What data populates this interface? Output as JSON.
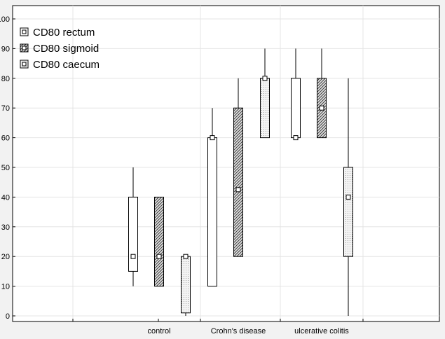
{
  "chart_data": {
    "type": "boxplot",
    "categories": [
      "control",
      "Crohn's disease",
      "ulcerative colitis"
    ],
    "ylim": [
      0,
      100
    ],
    "yticks": [
      0,
      10,
      20,
      30,
      40,
      50,
      60,
      70,
      80,
      90,
      100
    ],
    "grid": true,
    "legend_position": "top-left",
    "series": [
      {
        "name": "CD80 rectum",
        "pattern": "plain",
        "boxes": [
          {
            "min": 10,
            "q1": 15,
            "median": 20,
            "q3": 40,
            "max": 50
          },
          {
            "min": 10,
            "q1": 10,
            "median": 60,
            "q3": 60,
            "max": 70
          },
          {
            "min": 60,
            "q1": 60,
            "median": 60,
            "q3": 80,
            "max": 90
          }
        ]
      },
      {
        "name": "CD80 sigmoid",
        "pattern": "hatch",
        "boxes": [
          {
            "min": 10,
            "q1": 10,
            "median": 20,
            "q3": 40,
            "max": 40
          },
          {
            "min": 20,
            "q1": 20,
            "median": 42.5,
            "q3": 70,
            "max": 80
          },
          {
            "min": 60,
            "q1": 60,
            "median": 70,
            "q3": 80,
            "max": 90
          }
        ]
      },
      {
        "name": "CD80 caecum",
        "pattern": "dots",
        "boxes": [
          {
            "min": 0,
            "q1": 1,
            "median": 20,
            "q3": 20,
            "max": 20
          },
          {
            "min": 60,
            "q1": 60,
            "median": 80,
            "q3": 80,
            "max": 90
          },
          {
            "min": 0,
            "q1": 20,
            "median": 40,
            "q3": 50,
            "max": 80
          }
        ]
      }
    ]
  }
}
